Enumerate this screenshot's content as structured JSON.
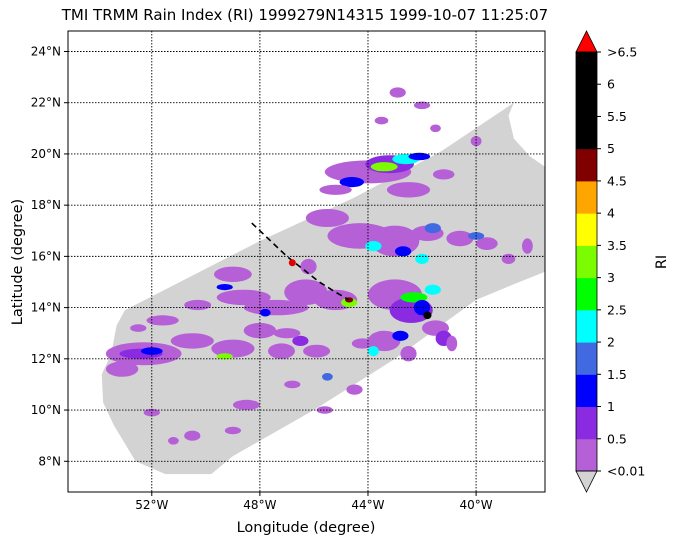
{
  "title": "TMI TRMM Rain Index (RI) 1999279N14315 1999-10-07 11:25:07",
  "xlabel": "Longitude (degree)",
  "ylabel": "Latitude (degree)",
  "colorbar_label": "RI",
  "x_ticks": [
    {
      "value": -52,
      "label": "52°W"
    },
    {
      "value": -48,
      "label": "48°W"
    },
    {
      "value": -44,
      "label": "44°W"
    },
    {
      "value": -40,
      "label": "40°W"
    }
  ],
  "y_ticks": [
    {
      "value": 8,
      "label": "8°N"
    },
    {
      "value": 10,
      "label": "10°N"
    },
    {
      "value": 12,
      "label": "12°N"
    },
    {
      "value": 14,
      "label": "14°N"
    },
    {
      "value": 16,
      "label": "16°N"
    },
    {
      "value": 18,
      "label": "18°N"
    },
    {
      "value": 20,
      "label": "20°N"
    },
    {
      "value": 22,
      "label": "22°N"
    },
    {
      "value": 24,
      "label": "24°N"
    }
  ],
  "colorbar": {
    "colors": [
      "#b660d8",
      "#8a2be2",
      "#0000ff",
      "#4169e1",
      "#00ffff",
      "#00ff00",
      "#7cfc00",
      "#ffff00",
      "#ffa500",
      "#800000",
      "#000000",
      "#000000",
      "#000000"
    ],
    "over_color": "#ff0000",
    "under_color": "#d3d3d3",
    "tick_labels": [
      "<0.01",
      "0.5",
      "1",
      "1.5",
      "2",
      "2.5",
      "3",
      "3.5",
      "4",
      "4.5",
      "5",
      "5.5",
      "6",
      ">6.5"
    ]
  },
  "swath_color": "#d3d3d3",
  "track": [
    [
      -48.3,
      17.3
    ],
    [
      -47.6,
      16.6
    ],
    [
      -47.0,
      16.0
    ],
    [
      -46.4,
      15.5
    ],
    [
      -45.8,
      15.0
    ],
    [
      -45.2,
      14.6
    ],
    [
      -44.7,
      14.3
    ]
  ],
  "storm_center": [
    -46.8,
    15.75
  ]
}
